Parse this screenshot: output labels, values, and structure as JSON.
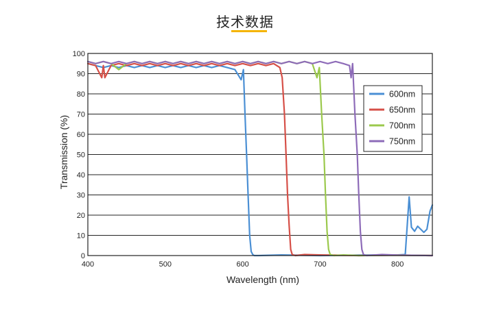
{
  "header": {
    "title": "技术数据"
  },
  "colors": {
    "accent": "#f5b400"
  },
  "chart_data": {
    "type": "line",
    "xlabel": "Wavelength (nm)",
    "ylabel": "Transmission (%)",
    "xlim": [
      400,
      845
    ],
    "ylim": [
      0,
      100
    ],
    "xticks": [
      400,
      500,
      600,
      700,
      800
    ],
    "yticks": [
      0,
      10,
      20,
      30,
      40,
      50,
      60,
      70,
      80,
      90,
      100
    ],
    "grid": "horizontal",
    "legend_position": "right",
    "series": [
      {
        "name": "600nm",
        "color": "#4a8fd4",
        "x": [
          400,
          410,
          420,
          430,
          440,
          450,
          460,
          470,
          480,
          490,
          500,
          510,
          520,
          530,
          540,
          550,
          560,
          570,
          580,
          590,
          598,
          601,
          603,
          605,
          607,
          609,
          611,
          613,
          615,
          620,
          650,
          700,
          750,
          800,
          810,
          815,
          818,
          822,
          826,
          830,
          834,
          838,
          842,
          845
        ],
        "y": [
          95,
          94,
          93,
          94,
          93,
          94,
          93,
          94,
          93,
          94,
          93,
          94,
          93,
          94,
          93,
          94,
          93,
          94,
          93,
          92,
          87,
          92,
          70,
          50,
          30,
          10,
          2,
          0.5,
          0,
          0,
          0.3,
          0,
          0.2,
          0.3,
          0.5,
          29,
          14,
          12,
          14.5,
          13,
          11.5,
          13,
          22,
          25
        ]
      },
      {
        "name": "650nm",
        "color": "#d64f47",
        "x": [
          400,
          410,
          418,
          420,
          422,
          430,
          440,
          450,
          460,
          470,
          480,
          490,
          500,
          510,
          520,
          530,
          540,
          550,
          560,
          570,
          580,
          590,
          600,
          610,
          620,
          630,
          640,
          648,
          651,
          654,
          656,
          658,
          660,
          662,
          664,
          668,
          680,
          700,
          750,
          800,
          845
        ],
        "y": [
          95,
          94,
          88,
          94,
          88,
          94,
          95,
          94,
          95,
          94,
          95,
          94,
          95,
          94,
          95,
          94,
          95,
          94,
          95,
          94,
          95,
          94,
          95,
          94,
          95,
          94,
          95,
          93,
          88,
          70,
          50,
          30,
          15,
          3,
          0.5,
          0,
          0.5,
          0.3,
          0,
          0.2,
          0
        ]
      },
      {
        "name": "700nm",
        "color": "#9bc94c",
        "x": [
          400,
          410,
          420,
          430,
          440,
          450,
          460,
          470,
          480,
          490,
          500,
          510,
          520,
          530,
          540,
          550,
          560,
          570,
          580,
          590,
          600,
          610,
          620,
          630,
          640,
          650,
          660,
          670,
          680,
          690,
          696,
          699,
          702,
          705,
          707,
          709,
          711,
          713,
          718,
          730,
          750,
          800,
          845
        ],
        "y": [
          96,
          95,
          96,
          95,
          92,
          95,
          96,
          95,
          96,
          95,
          96,
          95,
          96,
          95,
          96,
          95,
          96,
          95,
          96,
          95,
          96,
          95,
          96,
          95,
          96,
          95,
          96,
          95,
          96,
          95,
          88,
          93,
          70,
          50,
          30,
          12,
          3,
          0.5,
          0,
          0.3,
          0,
          0.2,
          0
        ]
      },
      {
        "name": "750nm",
        "color": "#8d6bb8",
        "x": [
          400,
          410,
          420,
          430,
          440,
          450,
          460,
          470,
          480,
          490,
          500,
          510,
          520,
          530,
          540,
          550,
          560,
          570,
          580,
          590,
          600,
          610,
          620,
          630,
          640,
          650,
          660,
          670,
          680,
          690,
          700,
          710,
          720,
          730,
          738,
          740,
          742,
          745,
          748,
          750,
          752,
          754,
          756,
          760,
          780,
          800,
          845
        ],
        "y": [
          96,
          95,
          96,
          95,
          96,
          95,
          96,
          95,
          96,
          95,
          96,
          95,
          96,
          95,
          96,
          95,
          96,
          95,
          96,
          95,
          96,
          95,
          96,
          95,
          96,
          95,
          96,
          95,
          96,
          95,
          96,
          95,
          96,
          95,
          94,
          88,
          95,
          70,
          50,
          30,
          12,
          3,
          0.5,
          0,
          0.5,
          0.2,
          0
        ]
      }
    ]
  }
}
